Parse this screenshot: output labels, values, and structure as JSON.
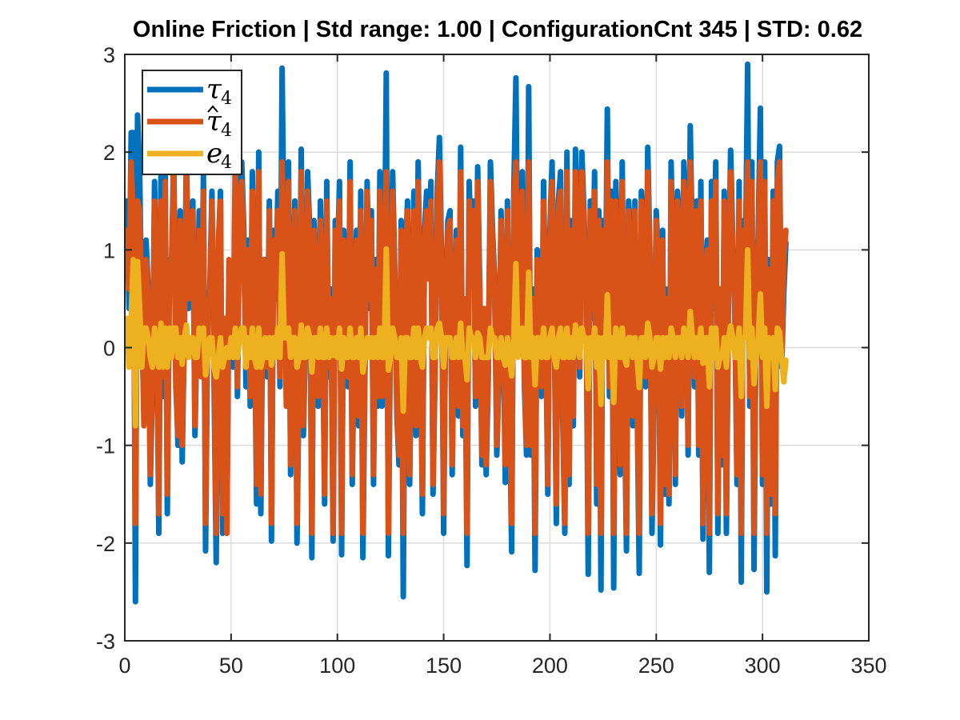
{
  "chart_data": {
    "type": "line",
    "title": "Online Friction | Std range: 1.00 | ConfigurationCnt 345 | STD: 0.62",
    "xlabel": "",
    "ylabel": "",
    "xlim": [
      0,
      350
    ],
    "ylim": [
      -3,
      3
    ],
    "xticks": [
      0,
      50,
      100,
      150,
      200,
      250,
      300,
      350
    ],
    "yticks": [
      3,
      2,
      1,
      0,
      -1,
      -2,
      -3
    ],
    "xtick_labels": [
      "0",
      "50",
      "100",
      "150",
      "200",
      "250",
      "300",
      "350"
    ],
    "ytick_labels": [
      "3",
      "2",
      "1",
      "0",
      "-1",
      "-2",
      "-3"
    ],
    "grid": true,
    "legend_position": "top-left",
    "legend": [
      {
        "base": "τ",
        "sub": "4",
        "hat": false,
        "color": "#0072BD"
      },
      {
        "base": "τ",
        "sub": "4",
        "hat": true,
        "color": "#D95319"
      },
      {
        "base": "e",
        "sub": "4",
        "hat": false,
        "color": "#EDB120"
      }
    ],
    "series": [
      {
        "color": "#0072BD",
        "x_start": 1,
        "values": [
          1.5,
          0.4,
          2.2,
          2.2,
          -2.6,
          2.38,
          1.8,
          0.2,
          -0.6,
          1.1,
          0.6,
          -1.4,
          -0.4,
          1.7,
          0.5,
          -1.9,
          1.75,
          -0.5,
          1.9,
          -1.7,
          0.9,
          0.8,
          2.0,
          -0.2,
          -1.0,
          1.4,
          -1.17,
          0.2,
          2.03,
          0.4,
          0.9,
          1.5,
          -0.9,
          0.2,
          1.4,
          -0.2,
          1.8,
          -2.08,
          0.3,
          0.6,
          1.6,
          -0.4,
          -2.2,
          1.0,
          1.6,
          -1.9,
          0.2,
          -1.9,
          0.8,
          0.6,
          -0.2,
          2.0,
          -0.5,
          1.6,
          1.9,
          1.2,
          -0.4,
          1.1,
          -0.6,
          1.8,
          0.4,
          -1.6,
          2.0,
          -1.7,
          0.8,
          0.9,
          -0.3,
          1.5,
          -1.98,
          1.2,
          0.5,
          1.6,
          -0.4,
          2.86,
          0.9,
          -0.5,
          1.9,
          -1.3,
          0.6,
          1.5,
          -2.0,
          -0.3,
          2.03,
          -0.9,
          0.1,
          1.8,
          1.2,
          -2.15,
          1.3,
          0.6,
          -0.6,
          1.5,
          0.5,
          -1.6,
          1.7,
          -0.3,
          0.6,
          -1.98,
          1.3,
          0.8,
          1.7,
          -2.12,
          1.2,
          0.4,
          -0.4,
          1.9,
          -1.4,
          0.2,
          1.2,
          -0.8,
          1.6,
          -2.15,
          -0.2,
          1.7,
          0.4,
          1.4,
          -1.4,
          0.9,
          -0.6,
          1.8,
          -0.6,
          0.3,
          2.81,
          -2.13,
          0.3,
          1.8,
          0.8,
          -0.7,
          -1.2,
          1.3,
          -2.55,
          0.9,
          1.5,
          -1.4,
          0.2,
          1.6,
          -0.9,
          1.9,
          0.3,
          -1.7,
          1.2,
          1.6,
          0.8,
          1.7,
          -1.5,
          -0.2,
          1.6,
          2.15,
          0.9,
          -1.9,
          0.6,
          1.3,
          1.4,
          -1.3,
          0.3,
          1.2,
          -0.7,
          2.05,
          -0.9,
          0.4,
          -2.23,
          1.7,
          0.9,
          1.5,
          -0.6,
          1.85,
          0.6,
          -1.2,
          0.3,
          -1.3,
          -0.3,
          1.9,
          1.2,
          0.7,
          -1.1,
          -0.3,
          1.4,
          0.3,
          -1.38,
          1.5,
          -0.6,
          -2.09,
          1.6,
          2.76,
          0.1,
          1.2,
          1.8,
          -0.4,
          -1.1,
          2.67,
          -1.1,
          0.6,
          -2.28,
          1.0,
          0.9,
          -0.5,
          1.7,
          0.3,
          -1.5,
          1.2,
          1.9,
          0.4,
          -1.8,
          1.5,
          1.8,
          -0.7,
          -1.9,
          2.0,
          -1.4,
          1.3,
          -0.8,
          2.03,
          1.2,
          -0.3,
          2.0,
          1.4,
          0.6,
          -2.32,
          1.5,
          0.3,
          1.8,
          -1.6,
          1.4,
          -2.48,
          1.3,
          0.2,
          2.44,
          -0.5,
          1.6,
          -2.46,
          1.7,
          0.9,
          -1.3,
          1.9,
          -0.5,
          -2.08,
          1.5,
          1.1,
          -0.8,
          1.5,
          -0.5,
          -2.31,
          1.6,
          1.1,
          -0.4,
          2.05,
          1.0,
          -1.9,
          -0.5,
          1.4,
          0.9,
          -2.02,
          1.2,
          -1.5,
          0.6,
          -1.6,
          1.9,
          0.8,
          -1.4,
          1.6,
          1.2,
          -0.7,
          1.9,
          1.4,
          -1.1,
          2.27,
          1.0,
          -0.4,
          1.5,
          -1.1,
          1.7,
          -1.96,
          0.7,
          1.1,
          -2.3,
          1.7,
          0.4,
          1.9,
          -1.9,
          0.5,
          -1.2,
          1.6,
          -1.9,
          0.6,
          2.02,
          1.1,
          0.3,
          -1.4,
          1.7,
          -2.4,
          1.3,
          0.9,
          2.9,
          -0.6,
          1.9,
          -2.27,
          0.4,
          1.2,
          2.45,
          -1.4,
          1.9,
          -2.5,
          0.9,
          -1.6,
          1.6,
          -2.13,
          1.9,
          2.06,
          -0.2,
          0.55,
          1.07
        ]
      },
      {
        "color": "#D95319",
        "x_start": 1,
        "values": [
          1.2,
          0.6,
          1.9,
          1.3,
          -1.8,
          1.5,
          1.4,
          0.4,
          -0.8,
          0.9,
          0.5,
          -1.3,
          -0.2,
          1.5,
          0.6,
          -1.7,
          1.5,
          -0.3,
          1.7,
          -1.5,
          0.7,
          0.9,
          1.8,
          -0.4,
          -0.9,
          1.3,
          -1.0,
          0.1,
          1.8,
          0.5,
          0.8,
          1.4,
          -0.8,
          0.3,
          1.2,
          -0.3,
          1.6,
          -1.8,
          0.4,
          0.5,
          1.5,
          -0.2,
          -1.9,
          1.1,
          1.5,
          -1.7,
          0.3,
          -1.9,
          0.9,
          0.5,
          -0.1,
          1.8,
          -0.4,
          1.5,
          1.7,
          1.0,
          -0.2,
          1.0,
          -0.5,
          1.6,
          0.5,
          -1.4,
          1.8,
          -1.5,
          0.9,
          0.8,
          -0.2,
          1.4,
          -1.8,
          1.1,
          0.6,
          1.4,
          -0.3,
          1.9,
          0.8,
          -0.6,
          1.7,
          -1.2,
          0.5,
          1.4,
          -1.8,
          -0.2,
          1.8,
          -0.8,
          0.2,
          1.6,
          1.1,
          -1.9,
          1.2,
          0.5,
          -0.5,
          1.3,
          0.6,
          -1.5,
          1.5,
          -0.2,
          0.5,
          -1.9,
          1.2,
          0.9,
          1.5,
          -1.9,
          1.1,
          0.5,
          -0.3,
          1.7,
          -1.3,
          0.3,
          1.1,
          -0.7,
          1.4,
          -1.9,
          -0.1,
          1.6,
          0.5,
          1.3,
          -1.3,
          0.8,
          -0.5,
          1.6,
          -0.5,
          0.4,
          1.8,
          -1.9,
          0.4,
          1.6,
          0.7,
          -0.6,
          -1.1,
          1.2,
          -1.9,
          0.8,
          1.4,
          -1.3,
          0.3,
          1.4,
          -0.8,
          1.7,
          0.4,
          -1.5,
          1.1,
          1.4,
          0.7,
          1.5,
          -1.4,
          -0.1,
          1.4,
          1.9,
          0.8,
          -1.7,
          0.5,
          1.2,
          1.3,
          -1.2,
          0.4,
          1.1,
          -0.6,
          1.8,
          -0.8,
          0.5,
          -1.9,
          1.5,
          0.8,
          1.4,
          -0.5,
          1.7,
          0.5,
          -1.1,
          0.4,
          -1.2,
          -0.2,
          1.7,
          1.1,
          0.6,
          -1.0,
          -0.2,
          1.3,
          0.4,
          -1.2,
          1.4,
          -0.5,
          -1.8,
          1.5,
          1.9,
          0.2,
          1.1,
          1.6,
          -0.3,
          -1.0,
          1.9,
          -1.0,
          0.5,
          -1.9,
          0.9,
          0.8,
          -0.4,
          1.5,
          0.4,
          -1.4,
          1.1,
          1.7,
          0.5,
          -1.6,
          1.4,
          1.6,
          -0.6,
          -1.8,
          1.8,
          -1.3,
          1.2,
          -0.7,
          1.8,
          1.1,
          -0.2,
          1.8,
          1.3,
          0.5,
          -1.9,
          1.4,
          0.4,
          1.6,
          -1.4,
          1.3,
          -1.9,
          1.2,
          0.3,
          1.9,
          -0.4,
          1.5,
          -1.9,
          1.5,
          0.8,
          -1.2,
          1.7,
          -0.4,
          -1.9,
          1.4,
          1.0,
          -0.7,
          1.4,
          -0.4,
          -1.9,
          1.5,
          1.0,
          -0.3,
          1.8,
          0.9,
          -1.7,
          -0.4,
          1.3,
          0.8,
          -1.8,
          1.1,
          -1.4,
          0.5,
          -1.5,
          1.7,
          0.7,
          -1.3,
          1.5,
          1.1,
          -0.6,
          1.7,
          1.3,
          -1.0,
          1.9,
          0.9,
          -0.3,
          1.4,
          -1.0,
          1.5,
          -1.8,
          0.6,
          1.0,
          -1.9,
          1.5,
          0.5,
          1.7,
          -1.7,
          0.6,
          -1.1,
          1.5,
          -1.7,
          0.5,
          1.8,
          1.0,
          0.4,
          -1.3,
          1.5,
          -1.9,
          1.2,
          0.8,
          1.9,
          -0.5,
          1.7,
          -1.9,
          0.5,
          1.1,
          1.9,
          -1.3,
          1.7,
          -1.9,
          0.8,
          -1.5,
          1.5,
          -1.7,
          1.7,
          1.9,
          -0.1,
          0.9,
          1.2
        ]
      },
      {
        "color": "#EDB120",
        "x_start": 1,
        "values": [
          0.3,
          -0.2,
          0.3,
          0.9,
          -0.8,
          0.88,
          0.4,
          -0.2,
          0.2,
          0.2,
          0.1,
          -0.1,
          -0.2,
          0.2,
          -0.1,
          -0.2,
          0.25,
          -0.2,
          0.2,
          -0.2,
          0.2,
          -0.1,
          0.2,
          0.2,
          -0.1,
          0.1,
          -0.17,
          0.1,
          0.23,
          -0.1,
          0.1,
          0.1,
          -0.1,
          -0.1,
          0.2,
          0.1,
          0.2,
          -0.28,
          -0.1,
          0.1,
          0.1,
          -0.2,
          -0.3,
          -0.1,
          0.1,
          -0.2,
          -0.1,
          0.0,
          -0.1,
          0.1,
          -0.1,
          0.2,
          -0.1,
          0.1,
          0.2,
          0.2,
          -0.2,
          0.1,
          -0.1,
          0.2,
          -0.1,
          -0.2,
          0.2,
          -0.2,
          -0.1,
          0.1,
          -0.1,
          0.1,
          -0.18,
          0.1,
          -0.1,
          0.2,
          -0.1,
          0.96,
          0.1,
          0.1,
          0.2,
          -0.1,
          0.1,
          0.1,
          -0.2,
          -0.1,
          0.23,
          -0.1,
          -0.1,
          0.2,
          0.1,
          -0.25,
          0.1,
          0.1,
          -0.1,
          0.2,
          -0.1,
          -0.1,
          0.2,
          -0.1,
          0.1,
          -0.08,
          0.1,
          -0.1,
          0.2,
          -0.22,
          0.1,
          -0.1,
          -0.1,
          0.2,
          -0.1,
          -0.1,
          0.1,
          -0.1,
          0.2,
          -0.25,
          -0.1,
          0.1,
          -0.1,
          0.1,
          -0.1,
          0.1,
          -0.1,
          0.2,
          -0.1,
          -0.1,
          1.01,
          -0.23,
          -0.1,
          0.2,
          0.1,
          -0.1,
          -0.1,
          0.1,
          -0.65,
          0.1,
          0.1,
          -0.1,
          -0.1,
          0.2,
          -0.1,
          0.2,
          -0.1,
          -0.2,
          0.1,
          0.2,
          0.1,
          0.2,
          -0.1,
          -0.1,
          0.2,
          0.25,
          0.1,
          -0.2,
          0.1,
          0.1,
          0.1,
          -0.1,
          -0.1,
          0.1,
          -0.1,
          0.25,
          -0.1,
          -0.1,
          -0.33,
          0.2,
          0.1,
          0.1,
          -0.1,
          0.15,
          0.1,
          -0.1,
          -0.1,
          -0.1,
          -0.1,
          0.2,
          0.1,
          0.1,
          -0.1,
          -0.1,
          0.1,
          -0.1,
          -0.18,
          0.1,
          -0.1,
          -0.29,
          0.1,
          0.86,
          -0.1,
          0.1,
          0.2,
          -0.1,
          -0.1,
          0.77,
          -0.1,
          0.1,
          -0.38,
          0.1,
          0.1,
          -0.1,
          0.2,
          -0.1,
          -0.1,
          0.1,
          0.2,
          -0.1,
          -0.2,
          0.1,
          0.2,
          -0.1,
          -0.1,
          0.2,
          -0.1,
          0.1,
          -0.1,
          0.23,
          0.1,
          -0.1,
          0.2,
          0.1,
          0.1,
          -0.42,
          0.1,
          -0.1,
          0.2,
          -0.2,
          0.1,
          -0.58,
          0.1,
          -0.1,
          0.54,
          -0.1,
          0.1,
          -0.56,
          0.2,
          0.1,
          -0.1,
          0.2,
          -0.1,
          -0.18,
          0.1,
          0.1,
          -0.1,
          0.1,
          -0.1,
          -0.41,
          0.1,
          0.1,
          -0.1,
          0.25,
          0.1,
          -0.2,
          -0.1,
          0.1,
          0.1,
          -0.22,
          0.1,
          -0.1,
          0.1,
          -0.1,
          0.2,
          0.1,
          -0.1,
          0.1,
          0.1,
          -0.1,
          0.2,
          0.1,
          -0.1,
          0.37,
          0.1,
          -0.1,
          0.1,
          -0.1,
          0.2,
          -0.16,
          0.1,
          0.1,
          -0.4,
          0.2,
          -0.1,
          0.2,
          -0.2,
          -0.1,
          -0.1,
          0.1,
          -0.2,
          0.1,
          0.22,
          0.1,
          -0.1,
          -0.1,
          0.2,
          -0.5,
          0.1,
          0.1,
          1.0,
          -0.1,
          0.2,
          -0.37,
          -0.1,
          0.1,
          0.55,
          -0.1,
          0.2,
          -0.6,
          0.1,
          -0.1,
          0.1,
          -0.43,
          0.2,
          0.16,
          -0.1,
          -0.35,
          -0.13
        ]
      }
    ]
  }
}
